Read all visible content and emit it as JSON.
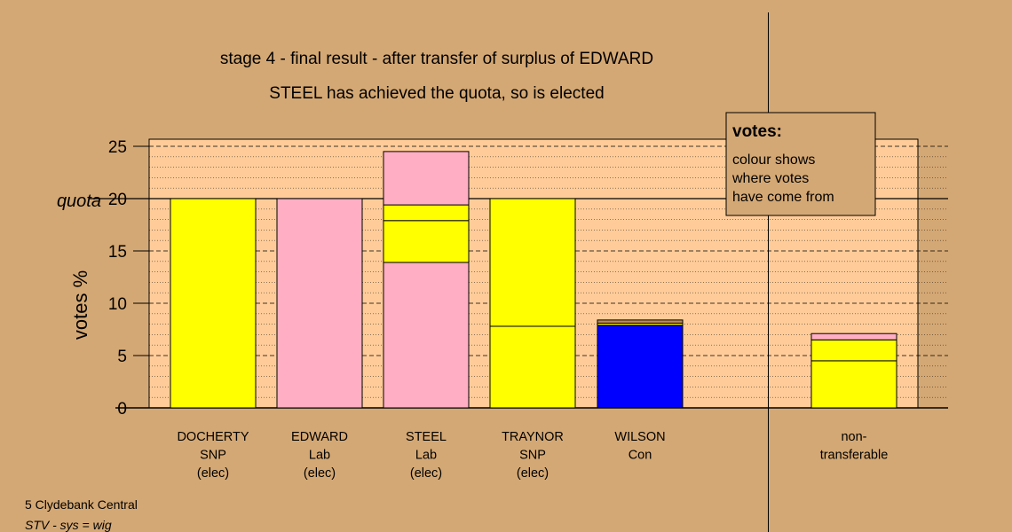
{
  "title_line1": "stage 4 - final result - after transfer of surplus of EDWARD",
  "title_line2": "STEEL has achieved the quota, so is elected",
  "ylabel": "votes %",
  "quota_label": "quota",
  "footer": {
    "line1": "5 Clydebank Central",
    "line2": "STV - sys = wig"
  },
  "legend": {
    "title": "votes:",
    "lines": [
      "colour shows",
      "where votes",
      "have come from"
    ]
  },
  "colors": {
    "background": "#D4A874",
    "plot_background": "#FFCC99",
    "SNP": "#FFFF00",
    "Lab": "#FFAEC3",
    "Con": "#0000FF",
    "brown": "#C08850"
  },
  "chart_data": {
    "type": "bar",
    "stacked": true,
    "ylim": [
      0,
      25
    ],
    "yticks": [
      0,
      5,
      10,
      15,
      20,
      25
    ],
    "quota": 20,
    "categories": [
      {
        "name": "DOCHERTY",
        "sub": [
          "SNP",
          "(elec)"
        ],
        "segments": [
          {
            "color": "SNP",
            "from": 0,
            "to": 20
          }
        ]
      },
      {
        "name": "EDWARD",
        "sub": [
          "Lab",
          "(elec)"
        ],
        "segments": [
          {
            "color": "Lab",
            "from": 0,
            "to": 20
          }
        ]
      },
      {
        "name": "STEEL",
        "sub": [
          "Lab",
          "(elec)"
        ],
        "segments": [
          {
            "color": "Lab",
            "from": 0,
            "to": 13.9
          },
          {
            "color": "SNP",
            "from": 13.9,
            "to": 17.9
          },
          {
            "color": "SNP",
            "from": 17.9,
            "to": 19.4
          },
          {
            "color": "Lab",
            "from": 19.4,
            "to": 24.5
          }
        ]
      },
      {
        "name": "TRAYNOR",
        "sub": [
          "SNP",
          "(elec)"
        ],
        "segments": [
          {
            "color": "SNP",
            "from": 0,
            "to": 7.8
          },
          {
            "color": "SNP",
            "from": 7.8,
            "to": 20
          }
        ]
      },
      {
        "name": "WILSON",
        "sub": [
          "Con"
        ],
        "segments": [
          {
            "color": "Con",
            "from": 0,
            "to": 7.9
          },
          {
            "color": "SNP",
            "from": 7.9,
            "to": 8.1
          },
          {
            "color": "brown",
            "from": 8.1,
            "to": 8.4
          }
        ]
      },
      {
        "name": "non-",
        "sub": [
          "transferable"
        ],
        "segments": [
          {
            "color": "SNP",
            "from": 0,
            "to": 4.5
          },
          {
            "color": "SNP",
            "from": 4.5,
            "to": 6.5
          },
          {
            "color": "Lab",
            "from": 6.5,
            "to": 7.1
          }
        ]
      }
    ]
  }
}
